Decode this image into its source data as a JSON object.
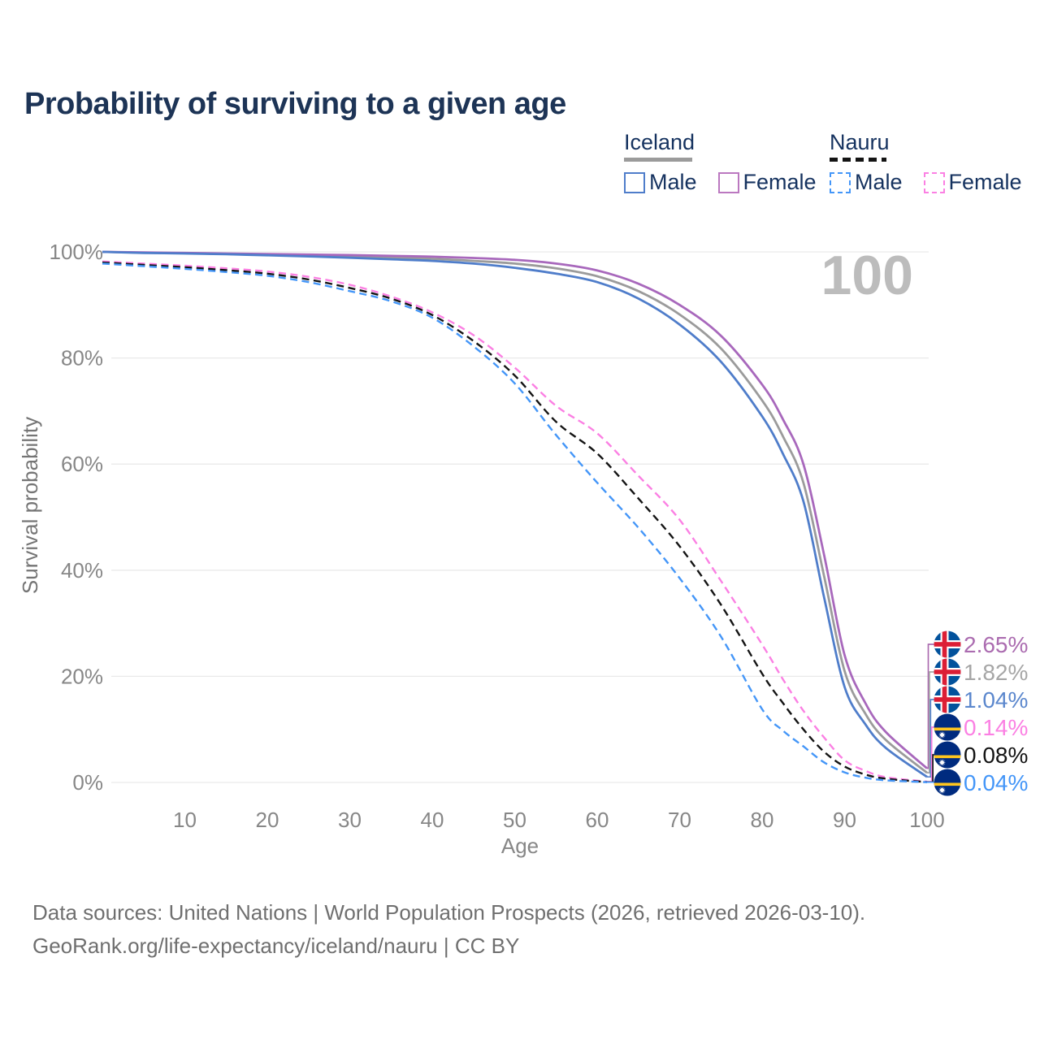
{
  "title": "Probability of surviving to a given age",
  "watermark": "100",
  "legend": {
    "groups": [
      {
        "name": "Iceland",
        "underline_style": "solid",
        "underline_color": "#9b9b9b",
        "underline_width": 84,
        "items": [
          {
            "label": "Male",
            "color": "#4f7dca",
            "dashed": false
          },
          {
            "label": "Female",
            "color": "#bb78c0",
            "dashed": false
          }
        ]
      },
      {
        "name": "Nauru",
        "underline_style": "dashed",
        "underline_color": "#141414",
        "underline_width": 70,
        "items": [
          {
            "label": "Male",
            "color": "#4496f8",
            "dashed": true
          },
          {
            "label": "Female",
            "color": "#fb80e3",
            "dashed": true
          }
        ]
      }
    ]
  },
  "chart_data": {
    "type": "line",
    "title": "Probability of surviving to a given age",
    "xlabel": "Age",
    "ylabel": "Survival probability",
    "xlim": [
      0,
      100
    ],
    "ylim": [
      0,
      100
    ],
    "grid": "horizontal-only",
    "legend_position": "top-right",
    "x_ticks": [
      10,
      20,
      30,
      40,
      50,
      60,
      70,
      80,
      90,
      100
    ],
    "y_ticks": [
      0,
      20,
      40,
      60,
      80,
      100
    ],
    "y_tick_suffix": "%",
    "watermark": "100",
    "x": [
      0,
      5,
      10,
      15,
      20,
      25,
      30,
      35,
      40,
      45,
      50,
      55,
      60,
      65,
      70,
      75,
      80,
      82.5,
      85,
      87.5,
      90,
      92.5,
      95,
      100
    ],
    "series": [
      {
        "name": "Iceland",
        "country": "Iceland",
        "sex": "All",
        "color": "#9b9b9b",
        "dash": "solid",
        "flag": "iceland",
        "end_label": "1.82%",
        "label_color": "#a6a6a6",
        "values": [
          100,
          99.85,
          99.75,
          99.6,
          99.45,
          99.3,
          99.15,
          98.95,
          98.7,
          98.3,
          97.8,
          96.9,
          95.4,
          92.6,
          88.2,
          81.8,
          72.0,
          65.3,
          56.5,
          39.0,
          21.0,
          13.0,
          8.0,
          1.82
        ]
      },
      {
        "name": "Iceland Female",
        "country": "Iceland",
        "sex": "Female",
        "color": "#a868bc",
        "dash": "solid",
        "flag": "iceland",
        "end_label": "2.65%",
        "label_color": "#ab6cb0",
        "values": [
          100,
          99.9,
          99.8,
          99.7,
          99.6,
          99.5,
          99.4,
          99.25,
          99.1,
          98.85,
          98.5,
          97.8,
          96.5,
          94.0,
          90.0,
          84.2,
          75.0,
          68.5,
          60.0,
          43.0,
          24.0,
          15.0,
          9.5,
          2.65
        ]
      },
      {
        "name": "Iceland Male",
        "country": "Iceland",
        "sex": "Male",
        "color": "#4f7dca",
        "dash": "solid",
        "flag": "iceland",
        "end_label": "1.04%",
        "label_color": "#5b87cd",
        "values": [
          100,
          99.8,
          99.7,
          99.55,
          99.35,
          99.15,
          98.9,
          98.6,
          98.3,
          97.8,
          97.0,
          95.9,
          94.3,
          91.2,
          86.3,
          79.3,
          69.0,
          62.0,
          53.0,
          35.0,
          18.0,
          11.0,
          6.5,
          1.04
        ]
      },
      {
        "name": "Nauru Female",
        "country": "Nauru",
        "sex": "Female",
        "color": "#fb80e3",
        "dash": "dashed",
        "flag": "nauru",
        "end_label": "0.14%",
        "label_color": "#fb80e3",
        "values": [
          98.2,
          97.8,
          97.4,
          96.9,
          96.3,
          95.3,
          93.8,
          91.6,
          88.6,
          84.3,
          78.2,
          71.0,
          65.8,
          57.8,
          49.5,
          38.0,
          26.0,
          19.5,
          13.5,
          8.5,
          4.2,
          2.2,
          1.0,
          0.14
        ]
      },
      {
        "name": "Nauru",
        "country": "Nauru",
        "sex": "All",
        "color": "#141414",
        "dash": "dashed",
        "flag": "nauru",
        "end_label": "0.08%",
        "label_color": "#141414",
        "values": [
          98.0,
          97.55,
          97.1,
          96.55,
          95.9,
          94.8,
          93.2,
          91.2,
          88.1,
          83.2,
          76.7,
          68.0,
          62.0,
          53.5,
          44.5,
          33.5,
          20.5,
          15.0,
          10.0,
          5.8,
          3.0,
          1.5,
          0.7,
          0.08
        ]
      },
      {
        "name": "Nauru Male",
        "country": "Nauru",
        "sex": "Male",
        "color": "#4496f8",
        "dash": "dashed",
        "flag": "nauru",
        "end_label": "0.04%",
        "label_color": "#4496f8",
        "values": [
          97.8,
          97.3,
          96.8,
          96.2,
          95.5,
          94.3,
          92.6,
          90.7,
          87.6,
          82.2,
          75.2,
          65.5,
          56.5,
          48.0,
          38.5,
          27.5,
          13.8,
          9.8,
          6.8,
          3.8,
          1.9,
          0.9,
          0.4,
          0.04
        ]
      }
    ]
  },
  "footer": {
    "line1": "Data sources: United Nations | World Population Prospects (2026, retrieved 2026-03-10).",
    "line2": "GeoRank.org/life-expectancy/iceland/nauru | CC BY"
  }
}
